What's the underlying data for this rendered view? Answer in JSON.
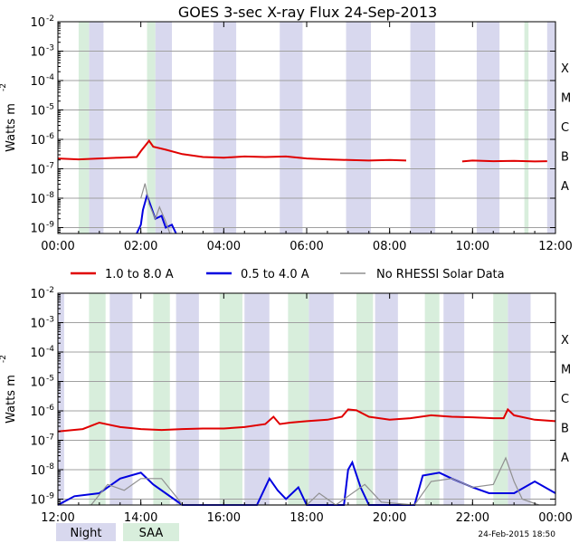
{
  "chart_data": [
    {
      "type": "line",
      "title": "GOES 3-sec X-ray Flux   24-Sep-2013",
      "ylabel_base": "Watts m",
      "ylabel_exp": "-2",
      "y_log": true,
      "ylim_exp": [
        -9.2,
        -2
      ],
      "y_ticks": [
        {
          "base": "10",
          "exp": "-2"
        },
        {
          "base": "10",
          "exp": "-3"
        },
        {
          "base": "10",
          "exp": "-4"
        },
        {
          "base": "10",
          "exp": "-5"
        },
        {
          "base": "10",
          "exp": "-6"
        },
        {
          "base": "10",
          "exp": "-7"
        },
        {
          "base": "10",
          "exp": "-8"
        },
        {
          "base": "10",
          "exp": "-9"
        }
      ],
      "xlim_hours": [
        0,
        12
      ],
      "x_ticks": [
        "00:00",
        "02:00",
        "04:00",
        "06:00",
        "08:00",
        "10:00",
        "12:00"
      ],
      "flare_classes": [
        "X",
        "M",
        "C",
        "B",
        "A"
      ],
      "night_intervals_h": [
        [
          0.75,
          1.1
        ],
        [
          2.35,
          2.75
        ],
        [
          3.75,
          4.3
        ],
        [
          5.35,
          5.9
        ],
        [
          6.95,
          7.55
        ],
        [
          8.5,
          9.1
        ],
        [
          10.1,
          10.65
        ],
        [
          11.8,
          12
        ]
      ],
      "saa_intervals_h": [
        [
          0.5,
          0.75
        ],
        [
          2.15,
          2.35
        ],
        [
          11.25,
          11.35
        ]
      ],
      "series": [
        {
          "name": "1.0 to 8.0 A",
          "color": "#e00000",
          "points": [
            [
              0,
              -6.65
            ],
            [
              0.5,
              -6.68
            ],
            [
              1,
              -6.65
            ],
            [
              1.5,
              -6.62
            ],
            [
              1.9,
              -6.6
            ],
            [
              2.0,
              -6.4
            ],
            [
              2.2,
              -6.05
            ],
            [
              2.3,
              -6.25
            ],
            [
              2.6,
              -6.35
            ],
            [
              3,
              -6.5
            ],
            [
              3.5,
              -6.6
            ],
            [
              4,
              -6.62
            ],
            [
              4.5,
              -6.58
            ],
            [
              5,
              -6.6
            ],
            [
              5.5,
              -6.58
            ],
            [
              6,
              -6.65
            ],
            [
              6.5,
              -6.68
            ],
            [
              7,
              -6.7
            ],
            [
              7.5,
              -6.72
            ],
            [
              8,
              -6.7
            ],
            [
              8.4,
              -6.72
            ]
          ],
          "gaps_after": [
            [
              8.4,
              9.75
            ]
          ],
          "points_b": [
            [
              9.75,
              -6.75
            ],
            [
              10,
              -6.72
            ],
            [
              10.5,
              -6.74
            ],
            [
              11,
              -6.73
            ],
            [
              11.5,
              -6.75
            ],
            [
              11.8,
              -6.74
            ]
          ]
        },
        {
          "name": "0.5 to 4.0 A",
          "color": "#0000e0",
          "points": [
            [
              1.9,
              -9.2
            ],
            [
              2.0,
              -8.9
            ],
            [
              2.05,
              -8.4
            ],
            [
              2.15,
              -7.9
            ],
            [
              2.25,
              -8.3
            ],
            [
              2.35,
              -8.7
            ],
            [
              2.5,
              -8.6
            ],
            [
              2.6,
              -9.0
            ],
            [
              2.75,
              -8.9
            ],
            [
              2.85,
              -9.2
            ]
          ]
        },
        {
          "name": "No RHESSI Solar Data",
          "color": "#909090",
          "points": [
            [
              2.0,
              -8.0
            ],
            [
              2.1,
              -7.5
            ],
            [
              2.2,
              -8.2
            ],
            [
              2.35,
              -8.7
            ],
            [
              2.45,
              -8.3
            ],
            [
              2.6,
              -8.8
            ],
            [
              2.7,
              -9.2
            ]
          ]
        }
      ]
    },
    {
      "type": "line",
      "title": "",
      "ylabel_base": "Watts m",
      "ylabel_exp": "-2",
      "y_log": true,
      "ylim_exp": [
        -9.2,
        -2
      ],
      "y_ticks": [
        {
          "base": "10",
          "exp": "-2"
        },
        {
          "base": "10",
          "exp": "-3"
        },
        {
          "base": "10",
          "exp": "-4"
        },
        {
          "base": "10",
          "exp": "-5"
        },
        {
          "base": "10",
          "exp": "-6"
        },
        {
          "base": "10",
          "exp": "-7"
        },
        {
          "base": "10",
          "exp": "-8"
        },
        {
          "base": "10",
          "exp": "-9"
        }
      ],
      "xlim_hours": [
        12,
        24
      ],
      "x_ticks": [
        "12:00",
        "14:00",
        "16:00",
        "18:00",
        "20:00",
        "22:00",
        "00:00"
      ],
      "flare_classes": [
        "X",
        "M",
        "C",
        "B",
        "A"
      ],
      "night_intervals_h": [
        [
          12,
          12.15
        ],
        [
          13.25,
          13.8
        ],
        [
          14.85,
          15.4
        ],
        [
          16.5,
          17.1
        ],
        [
          18.05,
          18.65
        ],
        [
          19.65,
          20.2
        ],
        [
          21.3,
          21.8
        ],
        [
          22.85,
          23.4
        ]
      ],
      "saa_intervals_h": [
        [
          12.75,
          13.15
        ],
        [
          14.3,
          14.7
        ],
        [
          15.9,
          16.45
        ],
        [
          17.55,
          18.05
        ],
        [
          19.2,
          19.6
        ],
        [
          20.85,
          21.2
        ],
        [
          22.5,
          22.85
        ]
      ],
      "series": [
        {
          "name": "1.0 to 8.0 A",
          "color": "#e00000",
          "points": [
            [
              12,
              -6.7
            ],
            [
              12.6,
              -6.62
            ],
            [
              13,
              -6.4
            ],
            [
              13.5,
              -6.55
            ],
            [
              14,
              -6.62
            ],
            [
              14.5,
              -6.65
            ],
            [
              15,
              -6.62
            ],
            [
              15.5,
              -6.6
            ],
            [
              16,
              -6.6
            ],
            [
              16.5,
              -6.55
            ],
            [
              17,
              -6.45
            ],
            [
              17.2,
              -6.2
            ],
            [
              17.35,
              -6.45
            ],
            [
              17.6,
              -6.4
            ],
            [
              18,
              -6.35
            ],
            [
              18.5,
              -6.3
            ],
            [
              18.85,
              -6.2
            ],
            [
              19.0,
              -5.95
            ],
            [
              19.2,
              -5.98
            ],
            [
              19.5,
              -6.2
            ],
            [
              20,
              -6.3
            ],
            [
              20.5,
              -6.25
            ],
            [
              21,
              -6.15
            ],
            [
              21.5,
              -6.2
            ],
            [
              22,
              -6.22
            ],
            [
              22.5,
              -6.25
            ],
            [
              22.75,
              -6.25
            ],
            [
              22.85,
              -5.95
            ],
            [
              23.0,
              -6.15
            ],
            [
              23.5,
              -6.3
            ],
            [
              24,
              -6.35
            ]
          ]
        },
        {
          "name": "0.5 to 4.0 A",
          "color": "#0000e0",
          "points": [
            [
              12,
              -9.2
            ],
            [
              12.4,
              -8.9
            ],
            [
              13,
              -8.8
            ],
            [
              13.5,
              -8.3
            ],
            [
              14,
              -8.1
            ],
            [
              14.3,
              -8.5
            ],
            [
              14.8,
              -9.0
            ],
            [
              15.0,
              -9.2
            ],
            [
              16.8,
              -9.2
            ],
            [
              17.1,
              -8.3
            ],
            [
              17.3,
              -8.7
            ],
            [
              17.5,
              -9.0
            ],
            [
              17.8,
              -8.6
            ],
            [
              18.0,
              -9.2
            ],
            [
              18.9,
              -9.2
            ],
            [
              19.0,
              -8.0
            ],
            [
              19.1,
              -7.75
            ],
            [
              19.3,
              -8.6
            ],
            [
              19.5,
              -9.2
            ],
            [
              20.6,
              -9.2
            ],
            [
              20.8,
              -8.2
            ],
            [
              21.2,
              -8.1
            ],
            [
              21.5,
              -8.3
            ],
            [
              22.0,
              -8.6
            ],
            [
              22.4,
              -8.8
            ],
            [
              23.0,
              -8.8
            ],
            [
              23.5,
              -8.4
            ],
            [
              24,
              -8.8
            ]
          ]
        },
        {
          "name": "No RHESSI Solar Data",
          "color": "#909090",
          "points": [
            [
              12.8,
              -9.2
            ],
            [
              13.2,
              -8.5
            ],
            [
              13.6,
              -8.7
            ],
            [
              14,
              -8.3
            ],
            [
              14.5,
              -8.3
            ],
            [
              14.9,
              -9.0
            ],
            [
              15.0,
              -9.2
            ],
            [
              18.0,
              -9.2
            ],
            [
              18.3,
              -8.8
            ],
            [
              18.7,
              -9.2
            ],
            [
              19.4,
              -8.5
            ],
            [
              19.8,
              -9.1
            ],
            [
              20.6,
              -9.2
            ],
            [
              21,
              -8.4
            ],
            [
              21.5,
              -8.3
            ],
            [
              22,
              -8.6
            ],
            [
              22.5,
              -8.5
            ],
            [
              22.8,
              -7.6
            ],
            [
              23.0,
              -8.4
            ],
            [
              23.2,
              -9.0
            ],
            [
              23.6,
              -9.2
            ]
          ]
        }
      ]
    }
  ],
  "legend": [
    {
      "label": "1.0 to 8.0 A",
      "color": "#e00000"
    },
    {
      "label": "0.5 to 4.0 A",
      "color": "#0000e0"
    },
    {
      "label": "No RHESSI Solar Data",
      "color": "#909090"
    }
  ],
  "key": {
    "night_label": "Night",
    "saa_label": "SAA",
    "night_color": "#d8d8ee",
    "saa_color": "#d8eedc"
  },
  "footer": {
    "timestamp": "24-Feb-2015 18:50"
  }
}
